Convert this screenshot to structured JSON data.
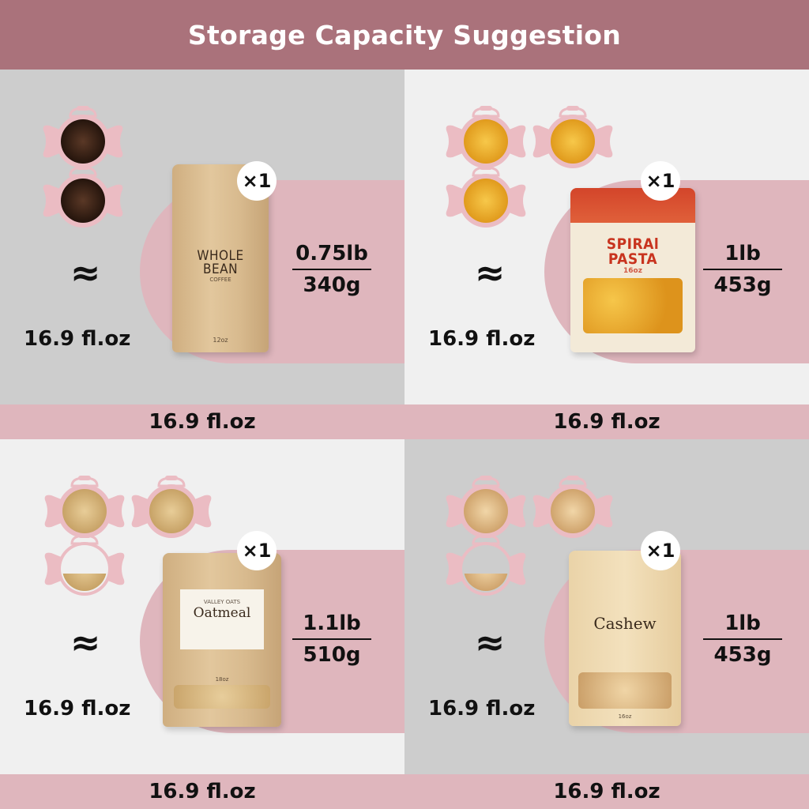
{
  "header": {
    "title": "Storage Capacity Suggestion"
  },
  "colors": {
    "header": "#aa727b",
    "accent_pink": "#dfb6bd",
    "jar_pink": "#ebbcc3",
    "panel_gray": "#cdcdcd",
    "panel_light": "#f0f0f0"
  },
  "panels": [
    {
      "food": "coffee beans",
      "jar_count": 2,
      "approx": "≈",
      "volume": "16.9 fl.oz",
      "multiplier": "×1",
      "weight_lb": "0.75lb",
      "weight_g": "340g",
      "band": "16.9 fl.oz",
      "bag": {
        "title_line1": "WHOLE",
        "title_line2": "BEAN",
        "subtitle": "COFFEE",
        "size": "12oz"
      }
    },
    {
      "food": "spiral pasta",
      "jar_count": 3,
      "approx": "≈",
      "volume": "16.9 fl.oz",
      "multiplier": "×1",
      "weight_lb": "1lb",
      "weight_g": "453g",
      "band": "16.9 fl.oz",
      "bag": {
        "title_line1": "SPIRAl",
        "title_line2": "PASTA",
        "size": "16oz"
      }
    },
    {
      "food": "oatmeal",
      "jar_count": 2.5,
      "approx": "≈",
      "volume": "16.9 fl.oz",
      "multiplier": "×1",
      "weight_lb": "1.1lb",
      "weight_g": "510g",
      "band": "16.9 fl.oz",
      "bag": {
        "brand": "VALLEY OATS",
        "title": "Oatmeal",
        "size": "18oz"
      }
    },
    {
      "food": "cashews",
      "jar_count": 2.5,
      "approx": "≈",
      "volume": "16.9 fl.oz",
      "multiplier": "×1",
      "weight_lb": "1lb",
      "weight_g": "453g",
      "band": "16.9 fl.oz",
      "bag": {
        "title": "Cashew",
        "size": "16oz"
      }
    }
  ]
}
